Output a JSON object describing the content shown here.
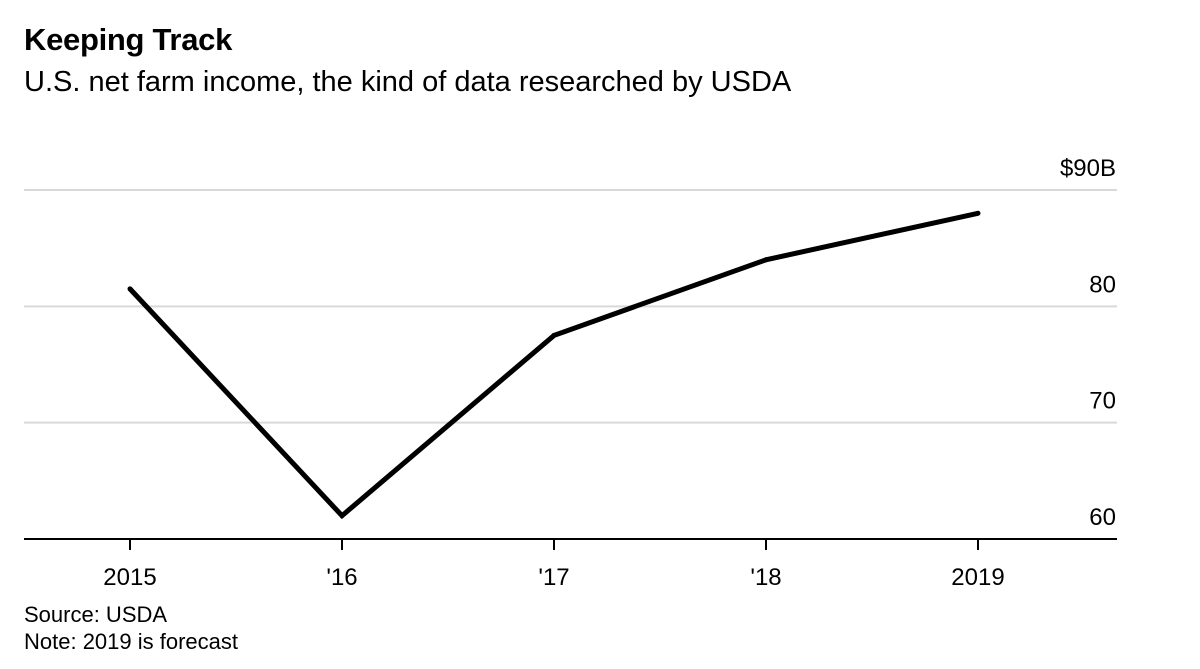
{
  "title": "Keeping Track",
  "subtitle": "U.S. net farm income, the kind of data researched by USDA",
  "source": "Source: USDA",
  "note": "Note: 2019 is forecast",
  "colors": {
    "line": "#000000",
    "grid": "#d9d9d9",
    "axis": "#000000"
  },
  "chart_data": {
    "type": "line",
    "categories": [
      "2015",
      "'16",
      "'17",
      "'18",
      "2019"
    ],
    "series": [
      {
        "values": [
          81.5,
          62.0,
          77.5,
          84.0,
          88.0
        ]
      }
    ],
    "ylim": [
      60,
      90
    ],
    "yticks": [
      60,
      70,
      80,
      90
    ],
    "ytick_labels": [
      "60",
      "70",
      "80",
      "$90B"
    ],
    "y_axis_side": "right",
    "grid": true,
    "xlabel": "",
    "ylabel": ""
  }
}
